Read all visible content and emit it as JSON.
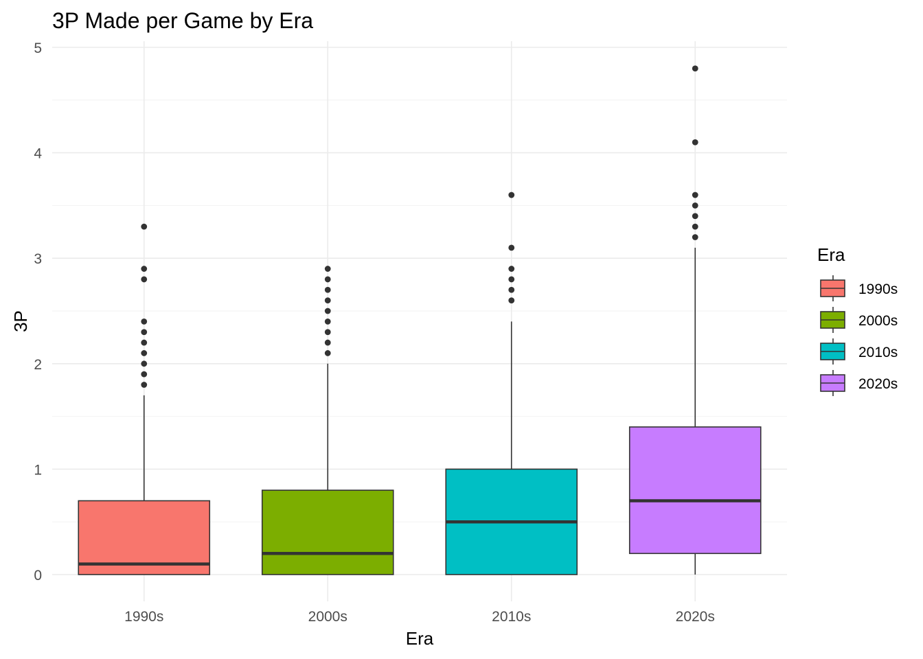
{
  "chart_data": {
    "type": "boxplot",
    "title": "3P Made per Game by Era",
    "xlabel": "Era",
    "ylabel": "3P",
    "ylim": [
      -0.2,
      5
    ],
    "yticks": [
      0,
      1,
      2,
      3,
      4,
      5
    ],
    "categories": [
      "1990s",
      "2000s",
      "2010s",
      "2020s"
    ],
    "grid": true,
    "legend": {
      "title": "Era",
      "placement": "right",
      "entries": [
        "1990s",
        "2000s",
        "2010s",
        "2020s"
      ]
    },
    "series": [
      {
        "category": "1990s",
        "color": "#F8766D",
        "min": 0,
        "q1": 0,
        "median": 0.1,
        "q3": 0.7,
        "max": 1.7,
        "outliers": [
          1.8,
          1.9,
          2.0,
          2.1,
          2.2,
          2.3,
          2.4,
          2.8,
          2.9,
          3.3
        ]
      },
      {
        "category": "2000s",
        "color": "#7CAE00",
        "min": 0,
        "q1": 0,
        "median": 0.2,
        "q3": 0.8,
        "max": 2.0,
        "outliers": [
          2.1,
          2.2,
          2.3,
          2.4,
          2.5,
          2.6,
          2.7,
          2.8,
          2.9
        ]
      },
      {
        "category": "2010s",
        "color": "#00BFC4",
        "min": 0,
        "q1": 0,
        "median": 0.5,
        "q3": 1.0,
        "max": 2.4,
        "outliers": [
          2.6,
          2.7,
          2.8,
          2.9,
          3.1,
          3.6
        ]
      },
      {
        "category": "2020s",
        "color": "#C77CFF",
        "min": 0,
        "q1": 0.2,
        "median": 0.7,
        "q3": 1.4,
        "max": 3.1,
        "outliers": [
          3.2,
          3.3,
          3.4,
          3.5,
          3.6,
          4.1,
          4.8
        ]
      }
    ]
  }
}
